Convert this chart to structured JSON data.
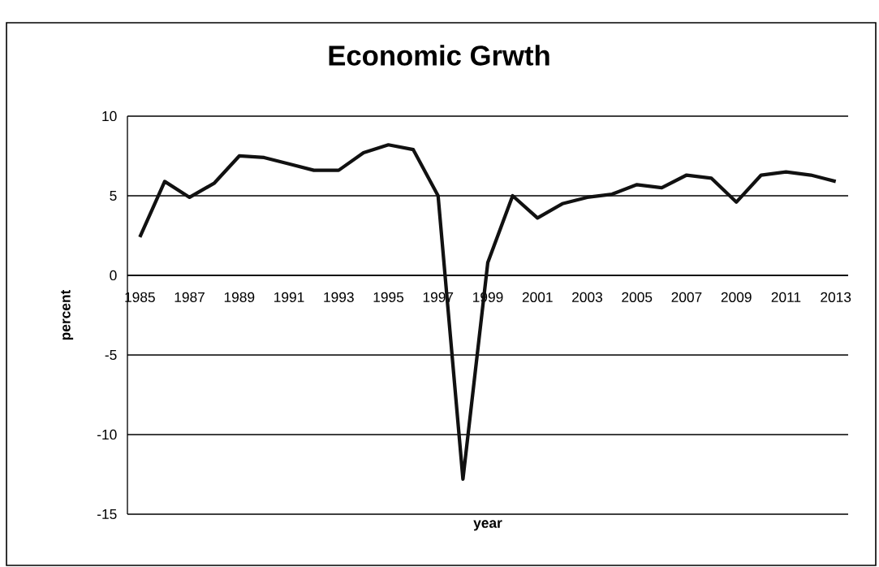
{
  "chart_data": {
    "type": "line",
    "title": "Economic Grwth",
    "xlabel": "year",
    "ylabel": "percent",
    "categories": [
      "1985",
      null,
      "1987",
      null,
      "1989",
      null,
      "1991",
      null,
      "1993",
      null,
      "1995",
      null,
      "1997",
      null,
      "1999",
      null,
      "2001",
      null,
      "2003",
      null,
      "2005",
      null,
      "2007",
      null,
      "2009",
      null,
      "2011",
      null,
      "2013"
    ],
    "values": [
      2.4,
      5.9,
      4.9,
      5.8,
      7.5,
      7.4,
      7.0,
      6.6,
      6.6,
      7.7,
      8.2,
      7.9,
      5.0,
      -12.8,
      0.8,
      5.0,
      3.6,
      4.5,
      4.9,
      5.1,
      5.7,
      5.5,
      6.3,
      6.1,
      4.6,
      6.3,
      6.5,
      6.3,
      5.9
    ],
    "color": "#111111",
    "ylim": [
      -15,
      10
    ],
    "yticks": [
      -15,
      -10,
      -5,
      0,
      5,
      10
    ],
    "grid": "y"
  }
}
